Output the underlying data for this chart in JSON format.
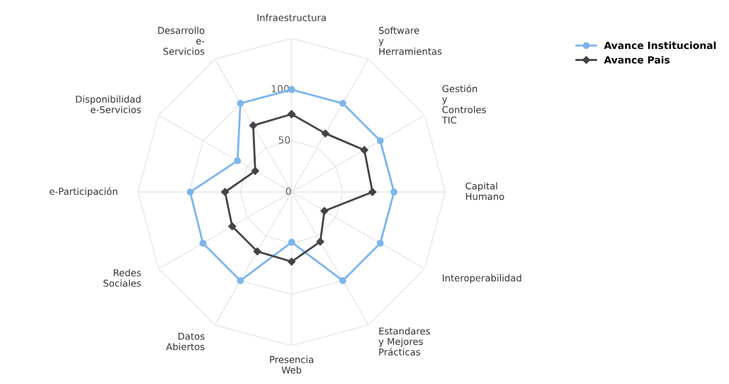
{
  "chart_data": {
    "type": "radar",
    "categories": [
      "Infraestructura",
      "Software\ny\nHerramientas",
      "Gestión\ny\nControles\nTIC",
      "Capital\nHumano",
      "Interoperabilidad",
      "Estandares\ny Mejores\nPrácticas",
      "Presencia\nWeb",
      "Datos\nAbiertos",
      "Redes\nSociales",
      "e-Participación",
      "Disponibilidad\ne-Servicios",
      "Desarrollo\ne-\nServicios"
    ],
    "series": [
      {
        "name": "Avance Institucional",
        "color": "#7cb5ec",
        "marker": "circle",
        "values": [
          100,
          100,
          100,
          100,
          100,
          100,
          49,
          100,
          100,
          99,
          61,
          100
        ]
      },
      {
        "name": "Avance Pais",
        "color": "#434348",
        "marker": "diamond",
        "values": [
          76,
          66,
          82,
          79,
          37,
          56,
          68,
          67,
          67,
          65,
          41,
          75
        ]
      }
    ],
    "ylim": [
      0,
      150
    ],
    "yticks": [
      0,
      50,
      100
    ],
    "grid": true,
    "legend": "top right"
  }
}
